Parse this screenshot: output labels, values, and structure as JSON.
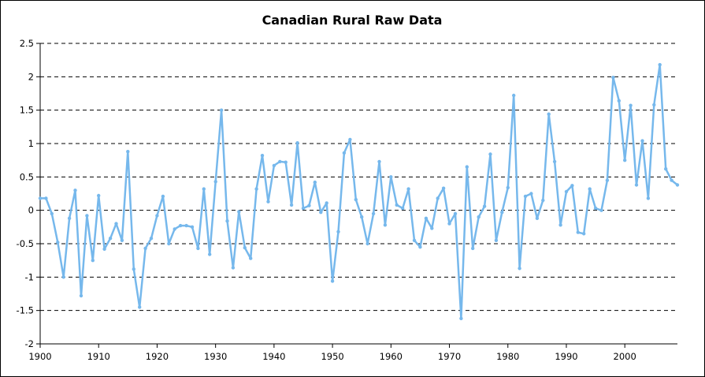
{
  "chart_data": {
    "type": "line",
    "title": "Canadian Rural Raw Data",
    "xlabel": "",
    "ylabel": "",
    "xlim": [
      1900,
      2009
    ],
    "ylim": [
      -2,
      2.5
    ],
    "x_ticks": [
      "1900",
      "1910",
      "1920",
      "1930",
      "1940",
      "1950",
      "1960",
      "1970",
      "1980",
      "1990",
      "2000"
    ],
    "y_ticks": [
      "2.5",
      "2",
      "1.5",
      "1",
      "0.5",
      "0",
      "-0.5",
      "-1",
      "-1.5",
      "-2"
    ],
    "grid": "horizontal dashed",
    "legend": "none",
    "series": [
      {
        "color": "#76b8ec",
        "x": [
          1900,
          1901,
          1902,
          1903,
          1904,
          1905,
          1906,
          1907,
          1908,
          1909,
          1910,
          1911,
          1912,
          1913,
          1914,
          1915,
          1916,
          1917,
          1918,
          1919,
          1920,
          1921,
          1922,
          1923,
          1924,
          1925,
          1926,
          1927,
          1928,
          1929,
          1930,
          1931,
          1932,
          1933,
          1934,
          1935,
          1936,
          1937,
          1938,
          1939,
          1940,
          1941,
          1942,
          1943,
          1944,
          1945,
          1946,
          1947,
          1948,
          1949,
          1950,
          1951,
          1952,
          1953,
          1954,
          1955,
          1956,
          1957,
          1958,
          1959,
          1960,
          1961,
          1962,
          1963,
          1964,
          1965,
          1966,
          1967,
          1968,
          1969,
          1970,
          1971,
          1972,
          1973,
          1974,
          1975,
          1976,
          1977,
          1978,
          1979,
          1980,
          1981,
          1982,
          1983,
          1984,
          1985,
          1986,
          1987,
          1988,
          1989,
          1990,
          1991,
          1992,
          1993,
          1994,
          1995,
          1996,
          1997,
          1998,
          1999,
          2000,
          2001,
          2002,
          2003,
          2004,
          2005,
          2006,
          2007,
          2008,
          2009
        ],
        "values": [
          0.18,
          0.18,
          -0.05,
          -0.48,
          -1.0,
          -0.12,
          0.3,
          -1.28,
          -0.08,
          -0.75,
          0.22,
          -0.58,
          -0.42,
          -0.2,
          -0.45,
          0.88,
          -0.88,
          -1.45,
          -0.57,
          -0.42,
          -0.08,
          0.21,
          -0.5,
          -0.28,
          -0.23,
          -0.23,
          -0.25,
          -0.57,
          0.32,
          -0.66,
          0.43,
          1.5,
          -0.16,
          -0.86,
          -0.02,
          -0.56,
          -0.72,
          0.32,
          0.82,
          0.13,
          0.67,
          0.73,
          0.72,
          0.08,
          1.01,
          0.03,
          0.07,
          0.42,
          -0.03,
          0.11,
          -1.06,
          -0.32,
          0.86,
          1.06,
          0.16,
          -0.1,
          -0.5,
          -0.05,
          0.73,
          -0.22,
          0.5,
          0.08,
          0.03,
          0.32,
          -0.45,
          -0.55,
          -0.12,
          -0.27,
          0.18,
          0.33,
          -0.2,
          -0.05,
          -1.62,
          0.65,
          -0.57,
          -0.1,
          0.06,
          0.84,
          -0.45,
          -0.03,
          0.34,
          1.72,
          -0.87,
          0.21,
          0.25,
          -0.12,
          0.15,
          1.44,
          0.73,
          -0.22,
          0.28,
          0.37,
          -0.33,
          -0.35,
          0.32,
          0.03,
          0.0,
          0.45,
          1.99,
          1.64,
          0.75,
          1.57,
          0.38,
          1.04,
          0.18,
          1.58,
          2.18,
          0.62,
          0.45,
          0.38
        ]
      }
    ]
  }
}
